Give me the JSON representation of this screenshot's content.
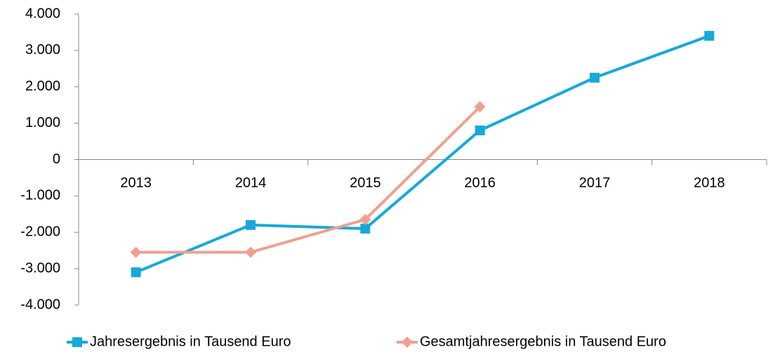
{
  "chart_data": {
    "type": "line",
    "categories": [
      "2013",
      "2014",
      "2015",
      "2016",
      "2017",
      "2018"
    ],
    "series": [
      {
        "name": "Jahresergebnis in Tausend Euro",
        "color": "#17a8dc",
        "marker": "square",
        "values": [
          -3100,
          -1800,
          -1900,
          800,
          2250,
          3400
        ]
      },
      {
        "name": "Gesamtjahresergebnis in Tausend Euro",
        "color": "#f0a090",
        "marker": "diamond",
        "values": [
          -2550,
          -2550,
          -1650,
          1450,
          null,
          null
        ]
      }
    ],
    "ylim": [
      -4000,
      4000
    ],
    "yticks": [
      {
        "value": -4000,
        "label": "-4.000"
      },
      {
        "value": -3000,
        "label": "-3.000"
      },
      {
        "value": -2000,
        "label": "-2.000"
      },
      {
        "value": -1000,
        "label": "-1.000"
      },
      0,
      {
        "value": 1000,
        "label": "1.000"
      },
      {
        "value": 2000,
        "label": "2.000"
      },
      {
        "value": 3000,
        "label": "3.000"
      },
      {
        "value": 4000,
        "label": "4.000"
      }
    ],
    "legend": "bottom"
  }
}
